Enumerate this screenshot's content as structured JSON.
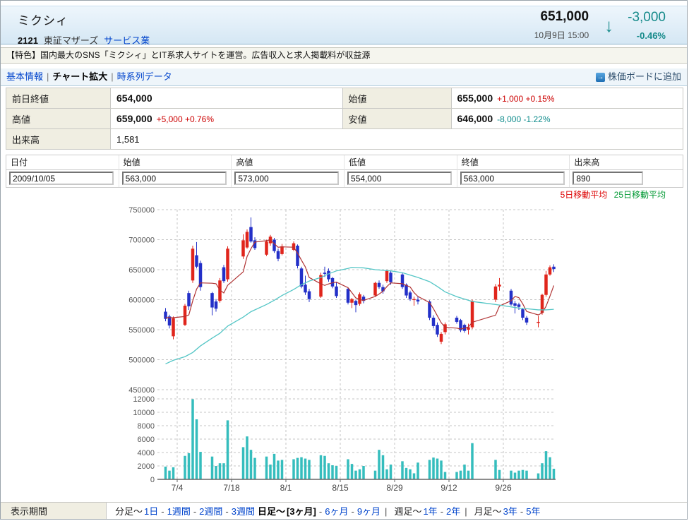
{
  "header": {
    "title": "ミクシィ",
    "code": "2121",
    "market": "東証マザーズ",
    "sector": "サービス業",
    "price": "651,000",
    "datetime": "10月9日 15:00",
    "change": "-3,000",
    "change_pct": "-0.46%",
    "direction_icon": "down-arrow",
    "down_color": "#158a8a",
    "up_color": "#cc0000"
  },
  "feature": {
    "text": "【特色】国内最大のSNS「ミクシィ」とIT系求人サイトを運営。広告収入と求人掲載料が収益源"
  },
  "nav": {
    "items": [
      {
        "label": "基本情報",
        "active": false
      },
      {
        "label": "チャート拡大",
        "active": true
      },
      {
        "label": "時系列データ",
        "active": false
      }
    ],
    "add_board_label": "株価ボードに追加",
    "add_board_icon": "arrow-right-icon"
  },
  "quote_table": {
    "rows": [
      {
        "cells": [
          {
            "label": "前日終値",
            "value": "654,000",
            "change": "",
            "dir": ""
          },
          {
            "label": "始値",
            "value": "655,000",
            "change": "+1,000 +0.15%",
            "dir": "up"
          }
        ]
      },
      {
        "cells": [
          {
            "label": "高値",
            "value": "659,000",
            "change": "+5,000 +0.76%",
            "dir": "up"
          },
          {
            "label": "安値",
            "value": "646,000",
            "change": "-8,000 -1.22%",
            "dir": "down"
          }
        ]
      },
      {
        "cells": [
          {
            "label": "出来高",
            "value": "1,581",
            "change": "",
            "dir": "",
            "span": true,
            "plain": true
          }
        ]
      }
    ],
    "up_color": "#cc0000",
    "down_color": "#0f8c8c"
  },
  "data_entry": {
    "columns": [
      {
        "header": "日付",
        "value": "2009/10/05"
      },
      {
        "header": "始値",
        "value": "563,000"
      },
      {
        "header": "高値",
        "value": "573,000"
      },
      {
        "header": "低値",
        "value": "554,000"
      },
      {
        "header": "終値",
        "value": "563,000"
      },
      {
        "header": "出来高",
        "value": "890"
      }
    ]
  },
  "period_bar": {
    "label": "表示期間",
    "item_separator": "-",
    "groups": [
      {
        "prefix": "分足〜",
        "bold_prefix": false,
        "lead_sep": "",
        "items": [
          "1日",
          "1週間",
          "2週間",
          "3週間"
        ],
        "current": null
      },
      {
        "prefix": "日足〜",
        "bold_prefix": true,
        "lead_sep": "",
        "items": [
          "[3ヶ月]",
          "6ヶ月",
          "9ヶ月"
        ],
        "current": "[3ヶ月]"
      },
      {
        "prefix": "週足〜",
        "bold_prefix": false,
        "lead_sep": "|",
        "items": [
          "1年",
          "2年"
        ],
        "current": null
      },
      {
        "prefix": "月足〜",
        "bold_prefix": false,
        "lead_sep": "|",
        "items": [
          "3年",
          "5年"
        ],
        "current": null
      }
    ]
  },
  "chart_data": {
    "type": "candlestick+volume",
    "legend": {
      "ma5": "5日移動平均",
      "ma25": "25日移動平均",
      "ma5_text_color": "#dd0000",
      "ma25_text_color": "#009933"
    },
    "colors": {
      "up": "#e0251c",
      "down": "#2330c8",
      "volume": "#35bdbd",
      "ma5_line": "#b03333",
      "ma25_line": "#55c6c6",
      "grid": "#c4c4c4",
      "axis_text": "#555",
      "baseline": "#666"
    },
    "x_axis": {
      "labels": [
        "7/4",
        "7/18",
        "8/1",
        "8/15",
        "8/29",
        "9/12",
        "9/26"
      ],
      "label_day_offsets": [
        3,
        17,
        31,
        45,
        59,
        73,
        87
      ]
    },
    "price_axis": {
      "ticks": [
        750000,
        700000,
        650000,
        600000,
        550000,
        500000,
        450000
      ],
      "range": [
        450000,
        750000
      ]
    },
    "volume_axis": {
      "ticks": [
        12000,
        10000,
        8000,
        6000,
        4000,
        2000,
        0
      ],
      "range": [
        0,
        12000
      ]
    },
    "candles": [
      [
        "7/1",
        0,
        580000,
        586000,
        564000,
        568000,
        1900
      ],
      [
        "7/2",
        1,
        572000,
        575000,
        552000,
        557000,
        1300
      ],
      [
        "7/3",
        2,
        539000,
        572000,
        534000,
        569000,
        1800
      ],
      [
        "7/6",
        5,
        558000,
        593000,
        556000,
        590000,
        3500
      ],
      [
        "7/7",
        6,
        611000,
        615000,
        583000,
        589000,
        3900
      ],
      [
        "7/8",
        7,
        632000,
        690000,
        628000,
        685000,
        11950
      ],
      [
        "7/9",
        8,
        674000,
        696000,
        652000,
        655000,
        8950
      ],
      [
        "7/10",
        9,
        661000,
        665000,
        615000,
        621000,
        4100
      ],
      [
        "7/13",
        12,
        611000,
        613000,
        574000,
        587000,
        3400
      ],
      [
        "7/14",
        13,
        597000,
        601000,
        580000,
        585000,
        2000
      ],
      [
        "7/15",
        14,
        598000,
        636000,
        595000,
        632000,
        2400
      ],
      [
        "7/16",
        15,
        654000,
        658000,
        628000,
        631000,
        2400
      ],
      [
        "7/17",
        16,
        634000,
        689000,
        630000,
        685000,
        8800
      ],
      [
        "7/21",
        20,
        672000,
        709000,
        668000,
        699000,
        4800
      ],
      [
        "7/22",
        21,
        687000,
        717000,
        685000,
        713000,
        6400
      ],
      [
        "7/23",
        22,
        721000,
        737000,
        695000,
        697000,
        4400
      ],
      [
        "7/24",
        23,
        699000,
        704000,
        683000,
        686000,
        3200
      ],
      [
        "7/27",
        26,
        675000,
        700000,
        673000,
        697000,
        3400
      ],
      [
        "7/28",
        27,
        694000,
        708000,
        690000,
        705000,
        2200
      ],
      [
        "7/29",
        28,
        700000,
        703000,
        678000,
        681000,
        3800
      ],
      [
        "7/30",
        29,
        681000,
        685000,
        664000,
        668000,
        2800
      ],
      [
        "7/31",
        30,
        676000,
        693000,
        674000,
        689000,
        2900
      ],
      [
        "8/3",
        33,
        683000,
        697000,
        681000,
        694000,
        3000
      ],
      [
        "8/4",
        34,
        690000,
        692000,
        652000,
        656000,
        3200
      ],
      [
        "8/5",
        35,
        652000,
        655000,
        619000,
        622000,
        3300
      ],
      [
        "8/6",
        36,
        625000,
        640000,
        608000,
        612000,
        3100
      ],
      [
        "8/7",
        37,
        614000,
        618000,
        596000,
        601000,
        2900
      ],
      [
        "8/10",
        40,
        605000,
        645000,
        603000,
        641000,
        3600
      ],
      [
        "8/11",
        41,
        645000,
        655000,
        638000,
        643000,
        3500
      ],
      [
        "8/12",
        42,
        648000,
        652000,
        630000,
        634000,
        2400
      ],
      [
        "8/13",
        43,
        636000,
        638000,
        619000,
        622000,
        2100
      ],
      [
        "8/14",
        44,
        622000,
        630000,
        603000,
        606000,
        2000
      ],
      [
        "8/17",
        47,
        618000,
        620000,
        592000,
        595000,
        3000
      ],
      [
        "8/18",
        48,
        595000,
        603000,
        586000,
        601000,
        2300
      ],
      [
        "8/19",
        49,
        598000,
        600000,
        579000,
        591000,
        1300
      ],
      [
        "8/20",
        50,
        593000,
        612000,
        590000,
        609000,
        1500
      ],
      [
        "8/21",
        51,
        605000,
        608000,
        594000,
        598000,
        2000
      ],
      [
        "8/24",
        54,
        607000,
        630000,
        605000,
        628000,
        1300
      ],
      [
        "8/25",
        55,
        628000,
        632000,
        618000,
        621000,
        4400
      ],
      [
        "8/26",
        56,
        621000,
        625000,
        610000,
        614000,
        3600
      ],
      [
        "8/27",
        57,
        631000,
        650000,
        628000,
        648000,
        1500
      ],
      [
        "8/28",
        58,
        645000,
        648000,
        625000,
        629000,
        2200
      ],
      [
        "8/31",
        61,
        642000,
        644000,
        618000,
        621000,
        2700
      ],
      [
        "9/1",
        62,
        625000,
        627000,
        603000,
        607000,
        1700
      ],
      [
        "9/2",
        63,
        612000,
        615000,
        598000,
        601000,
        1500
      ],
      [
        "9/3",
        64,
        601000,
        605000,
        590000,
        601000,
        900
      ],
      [
        "9/4",
        65,
        600000,
        606000,
        592000,
        597000,
        2500
      ],
      [
        "9/7",
        68,
        597000,
        599000,
        566000,
        570000,
        2900
      ],
      [
        "9/8",
        69,
        570000,
        574000,
        552000,
        556000,
        3250
      ],
      [
        "9/9",
        70,
        558000,
        562000,
        538000,
        542000,
        3100
      ],
      [
        "9/10",
        71,
        530000,
        546000,
        526000,
        543000,
        2800
      ],
      [
        "9/11",
        72,
        546000,
        562000,
        542000,
        559000,
        1100
      ],
      [
        "9/14",
        75,
        570000,
        573000,
        560000,
        563000,
        1100
      ],
      [
        "9/15",
        76,
        566000,
        568000,
        546000,
        549000,
        1300
      ],
      [
        "9/16",
        77,
        558000,
        560000,
        545000,
        548000,
        2200
      ],
      [
        "9/17",
        78,
        550000,
        560000,
        542000,
        554000,
        1300
      ],
      [
        "9/18",
        79,
        554000,
        600000,
        551000,
        598000,
        5400
      ],
      [
        "9/24",
        85,
        600000,
        626000,
        596000,
        622000,
        2900
      ],
      [
        "9/25",
        86,
        622000,
        636000,
        615000,
        625000,
        1400
      ],
      [
        "9/28",
        89,
        615000,
        618000,
        590000,
        592000,
        1300
      ],
      [
        "9/29",
        90,
        594000,
        598000,
        577000,
        590000,
        1000
      ],
      [
        "9/30",
        91,
        592000,
        595000,
        583000,
        588000,
        1300
      ],
      [
        "10/1",
        92,
        584000,
        586000,
        566000,
        570000,
        1400
      ],
      [
        "10/2",
        93,
        570000,
        573000,
        558000,
        562000,
        1300
      ],
      [
        "10/5",
        96,
        563000,
        573000,
        554000,
        563000,
        890
      ],
      [
        "10/6",
        97,
        578000,
        610000,
        575000,
        608000,
        2400
      ],
      [
        "10/7",
        98,
        608000,
        648000,
        605000,
        642000,
        4200
      ],
      [
        "10/8",
        99,
        642000,
        657000,
        640000,
        654000,
        3300
      ],
      [
        "10/9",
        100,
        655000,
        659000,
        646000,
        651000,
        1581
      ]
    ],
    "ma5_lead_points": [
      [
        0,
        570000
      ],
      [
        2,
        570000
      ],
      [
        5,
        572000
      ]
    ],
    "ma25_points": [
      [
        0,
        493000
      ],
      [
        2,
        499000
      ],
      [
        5,
        505000
      ],
      [
        7,
        512000
      ],
      [
        9,
        523000
      ],
      [
        12,
        536000
      ],
      [
        14,
        544000
      ],
      [
        16,
        556000
      ],
      [
        20,
        571000
      ],
      [
        22,
        580000
      ],
      [
        26,
        592000
      ],
      [
        28,
        599000
      ],
      [
        30,
        607000
      ],
      [
        33,
        617000
      ],
      [
        35,
        625000
      ],
      [
        37,
        631000
      ],
      [
        40,
        637000
      ],
      [
        42,
        643000
      ],
      [
        44,
        648000
      ],
      [
        47,
        652000
      ],
      [
        48,
        654000
      ],
      [
        51,
        653000
      ],
      [
        54,
        650000
      ],
      [
        58,
        648000
      ],
      [
        61,
        645000
      ],
      [
        63,
        641000
      ],
      [
        65,
        637000
      ],
      [
        68,
        630000
      ],
      [
        70,
        622000
      ],
      [
        72,
        613000
      ],
      [
        75,
        605000
      ],
      [
        77,
        601000
      ],
      [
        79,
        597000
      ],
      [
        85,
        592000
      ],
      [
        86,
        591000
      ],
      [
        89,
        588000
      ],
      [
        91,
        586000
      ],
      [
        93,
        585000
      ],
      [
        96,
        583000
      ],
      [
        98,
        583000
      ],
      [
        100,
        584000
      ]
    ]
  }
}
